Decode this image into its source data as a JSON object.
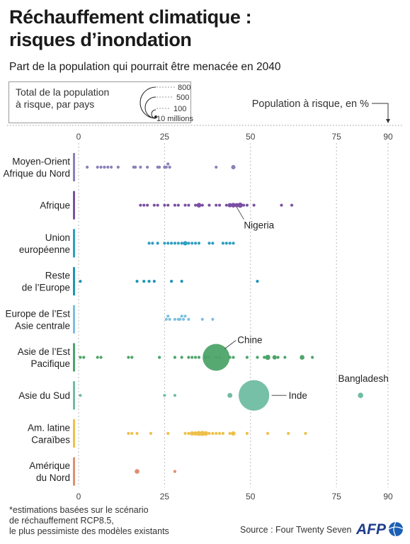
{
  "title_line1": "Réchauffement climatique :",
  "title_line2": "risques d’inondation",
  "subtitle": "Part de la population qui pourrait être menacée en 2040",
  "legend": {
    "label_line1": "Total de la population",
    "label_line2": "à risque, par pays",
    "sizes": [
      "800",
      "500",
      "100",
      "10 millions"
    ]
  },
  "axis_caption": "Population à risque, en %",
  "footnote": [
    "*estimations basées sur le scénario",
    "de réchauffement RCP8.5,",
    "le plus pessimiste des modèles existants"
  ],
  "source": "Source : Four Twenty Seven",
  "logo": "AFP",
  "chart_data": {
    "type": "scatter",
    "title": "Réchauffement climatique : risques d’inondation",
    "subtitle": "Part de la population qui pourrait être menacée en 2040",
    "xlabel": "Population à risque, en %",
    "xlim": [
      0,
      90
    ],
    "xticks": [
      0,
      25,
      50,
      75,
      90
    ],
    "regions": [
      {
        "name": [
          "Moyen-Orient",
          "Afrique du Nord"
        ],
        "color": "#8b80b8",
        "points": [
          [
            2.5,
            1
          ],
          [
            5.5,
            1
          ],
          [
            6.5,
            1
          ],
          [
            7.5,
            1
          ],
          [
            8.5,
            1
          ],
          [
            9.5,
            1
          ],
          [
            11.5,
            1
          ],
          [
            16,
            1
          ],
          [
            16.5,
            1
          ],
          [
            18,
            1
          ],
          [
            20,
            1
          ],
          [
            23,
            1
          ],
          [
            23.5,
            1
          ],
          [
            25,
            1
          ],
          [
            25.5,
            1
          ],
          [
            26,
            1
          ],
          [
            26.5,
            1
          ],
          [
            40,
            1
          ],
          [
            45,
            2
          ]
        ]
      },
      {
        "name": [
          "Afrique"
        ],
        "color": "#7b4fa3",
        "points": [
          [
            18,
            1
          ],
          [
            19,
            1
          ],
          [
            20,
            1
          ],
          [
            22,
            1
          ],
          [
            23,
            1
          ],
          [
            25,
            1
          ],
          [
            26,
            1
          ],
          [
            28,
            1
          ],
          [
            29,
            1
          ],
          [
            31,
            1
          ],
          [
            32,
            1
          ],
          [
            34,
            1
          ],
          [
            35,
            3
          ],
          [
            36,
            1
          ],
          [
            38,
            1
          ],
          [
            40,
            1
          ],
          [
            41,
            1
          ],
          [
            43,
            1
          ],
          [
            44,
            2
          ],
          [
            45,
            3
          ],
          [
            46,
            2
          ],
          [
            47,
            5
          ],
          [
            48,
            1
          ],
          [
            49,
            1
          ],
          [
            51,
            1
          ],
          [
            59,
            1
          ],
          [
            62,
            1
          ]
        ],
        "label": {
          "text": "Nigeria",
          "x": 46
        }
      },
      {
        "name": [
          "Union",
          "européenne"
        ],
        "color": "#2f9ec1",
        "points": [
          [
            20.5,
            1
          ],
          [
            21.5,
            1
          ],
          [
            23,
            1
          ],
          [
            25,
            1
          ],
          [
            26,
            1
          ],
          [
            27,
            1
          ],
          [
            28,
            1
          ],
          [
            29,
            1
          ],
          [
            30,
            1
          ],
          [
            31,
            2
          ],
          [
            32,
            1
          ],
          [
            33,
            1
          ],
          [
            34,
            1
          ],
          [
            35,
            1
          ],
          [
            38,
            1
          ],
          [
            39,
            1
          ],
          [
            42,
            1
          ],
          [
            43,
            1
          ],
          [
            44,
            1
          ],
          [
            45,
            1
          ]
        ]
      },
      {
        "name": [
          "Reste",
          "de l’Europe"
        ],
        "color": "#1f95b8",
        "points": [
          [
            0.5,
            1
          ],
          [
            17,
            1
          ],
          [
            19,
            1
          ],
          [
            20.5,
            1
          ],
          [
            22,
            1
          ],
          [
            27,
            1
          ],
          [
            30,
            1
          ],
          [
            52,
            1
          ]
        ]
      },
      {
        "name": [
          "Europe de l’Est",
          "Asie centrale"
        ],
        "color": "#7cbfdf",
        "points": [
          [
            25.5,
            1
          ],
          [
            26,
            1
          ],
          [
            26.5,
            1
          ],
          [
            28,
            1
          ],
          [
            29,
            1
          ],
          [
            29.5,
            1
          ],
          [
            30,
            1
          ],
          [
            30.5,
            1
          ],
          [
            31,
            1
          ],
          [
            32,
            1
          ],
          [
            36,
            1
          ],
          [
            39,
            1
          ]
        ]
      },
      {
        "name": [
          "Asie de l’Est",
          "Pacifique"
        ],
        "color": "#4da469",
        "points": [
          [
            0.5,
            1
          ],
          [
            1.5,
            1
          ],
          [
            5.5,
            1
          ],
          [
            6.5,
            1
          ],
          [
            14.5,
            1
          ],
          [
            15.5,
            1
          ],
          [
            23.5,
            1
          ],
          [
            28,
            1
          ],
          [
            30,
            1
          ],
          [
            32,
            1
          ],
          [
            33,
            1
          ],
          [
            34,
            1
          ],
          [
            35,
            1
          ],
          [
            37,
            2
          ],
          [
            38,
            1
          ],
          [
            40,
            1
          ],
          [
            41,
            1
          ],
          [
            44,
            1
          ],
          [
            45,
            1
          ],
          [
            49,
            1
          ],
          [
            52,
            1
          ],
          [
            54,
            1
          ],
          [
            55,
            5
          ],
          [
            57,
            2
          ],
          [
            58,
            1
          ],
          [
            60,
            1
          ],
          [
            65,
            3
          ],
          [
            68,
            1
          ],
          [
            40,
            600
          ]
        ],
        "label": {
          "text": "Chine",
          "x": 40
        }
      },
      {
        "name": [
          "Asie du Sud"
        ],
        "color": "#6fbda3",
        "points": [
          [
            0.5,
            1
          ],
          [
            25,
            1
          ],
          [
            28,
            1
          ],
          [
            44,
            4
          ],
          [
            51,
            800
          ],
          [
            82,
            6
          ]
        ],
        "labels": [
          {
            "text": "Inde",
            "x": 51
          },
          {
            "text": "Bangladesh",
            "x": 82
          }
        ]
      },
      {
        "name": [
          "Am. latine",
          "Caraïbes"
        ],
        "color": "#eec04a",
        "points": [
          [
            14.5,
            1
          ],
          [
            15.5,
            1
          ],
          [
            17,
            1
          ],
          [
            21,
            1
          ],
          [
            26,
            1
          ],
          [
            31,
            1
          ],
          [
            32,
            1
          ],
          [
            33,
            2
          ],
          [
            34,
            2
          ],
          [
            35,
            4
          ],
          [
            36,
            5
          ],
          [
            37,
            3
          ],
          [
            38,
            1
          ],
          [
            39,
            1
          ],
          [
            40,
            1
          ],
          [
            41,
            1
          ],
          [
            42,
            1
          ],
          [
            44,
            1
          ],
          [
            45,
            2
          ],
          [
            49,
            1
          ],
          [
            55,
            1
          ],
          [
            61,
            1
          ],
          [
            66,
            1
          ]
        ]
      },
      {
        "name": [
          "Amérique",
          "du Nord"
        ],
        "color": "#e08e72",
        "points": [
          [
            17,
            3
          ],
          [
            28,
            1
          ]
        ]
      }
    ]
  }
}
